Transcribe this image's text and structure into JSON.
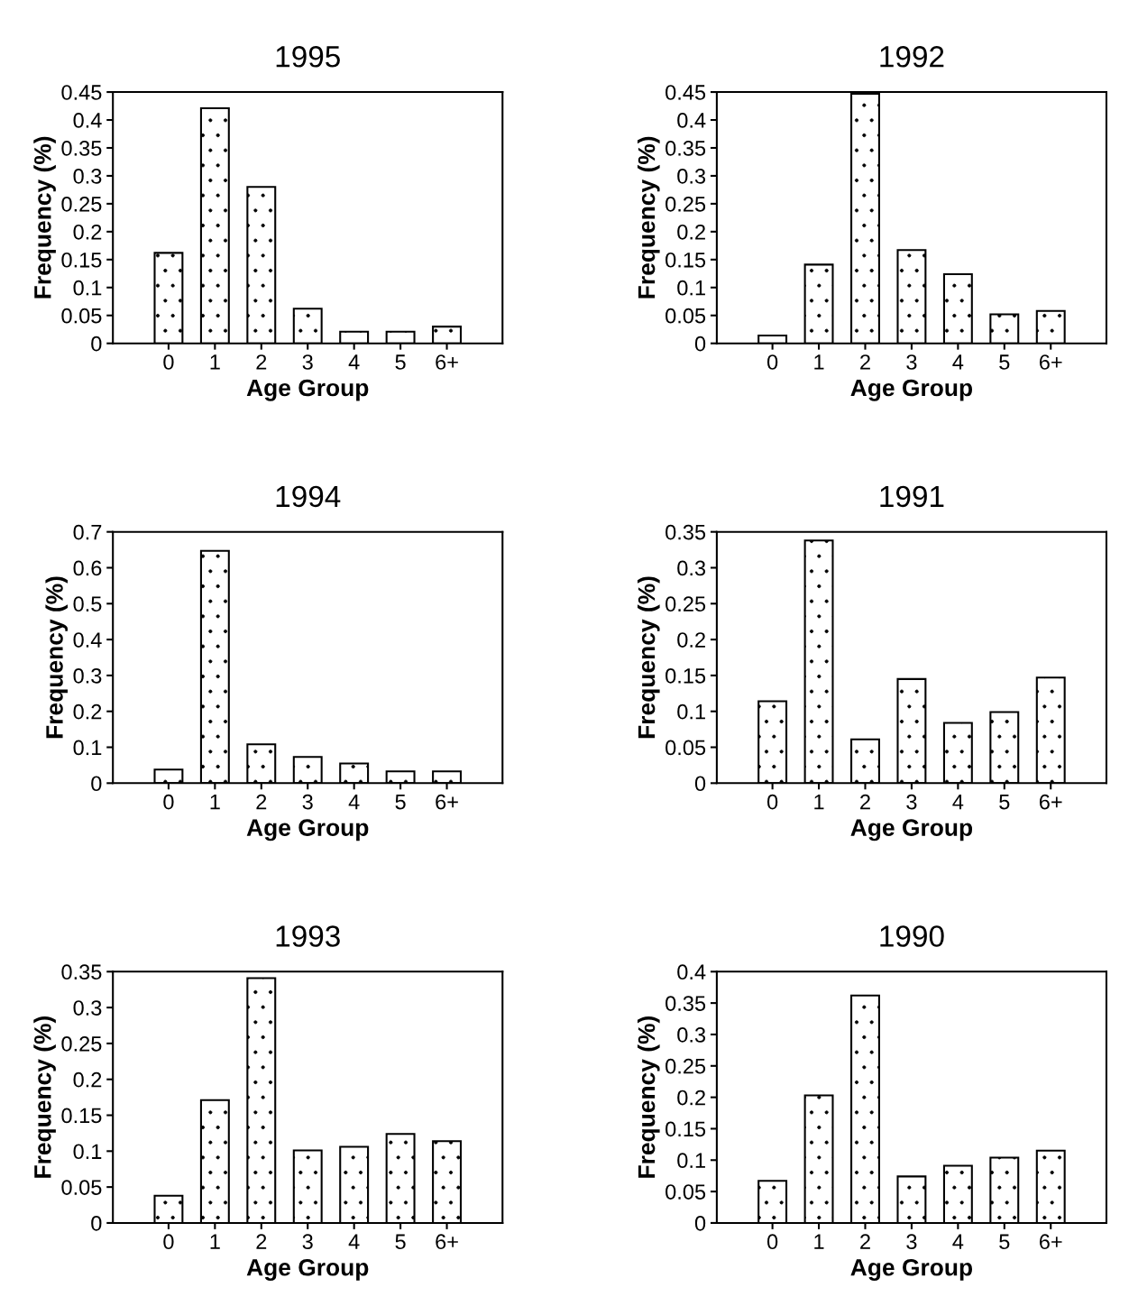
{
  "chart_data": [
    {
      "type": "bar",
      "title": "1995",
      "xlabel": "Age Group",
      "ylabel": "Frequency (%)",
      "categories": [
        "0",
        "1",
        "2",
        "3",
        "4",
        "5",
        "6+"
      ],
      "values": [
        0.162,
        0.421,
        0.28,
        0.062,
        0.021,
        0.021,
        0.03
      ],
      "ylim": [
        0,
        0.45
      ],
      "yticks": [
        0,
        0.05,
        0.1,
        0.15,
        0.2,
        0.25,
        0.3,
        0.35,
        0.4,
        0.45
      ],
      "grid": false
    },
    {
      "type": "bar",
      "title": "1992",
      "xlabel": "Age Group",
      "ylabel": "Frequency (%)",
      "categories": [
        "0",
        "1",
        "2",
        "3",
        "4",
        "5",
        "6+"
      ],
      "values": [
        0.014,
        0.141,
        0.447,
        0.167,
        0.124,
        0.052,
        0.058
      ],
      "ylim": [
        0,
        0.45
      ],
      "yticks": [
        0,
        0.05,
        0.1,
        0.15,
        0.2,
        0.25,
        0.3,
        0.35,
        0.4,
        0.45
      ],
      "grid": false
    },
    {
      "type": "bar",
      "title": "1994",
      "xlabel": "Age Group",
      "ylabel": "Frequency (%)",
      "categories": [
        "0",
        "1",
        "2",
        "3",
        "4",
        "5",
        "6+"
      ],
      "values": [
        0.038,
        0.647,
        0.108,
        0.073,
        0.055,
        0.033,
        0.033
      ],
      "ylim": [
        0,
        0.7
      ],
      "yticks": [
        0,
        0.1,
        0.2,
        0.3,
        0.4,
        0.5,
        0.6,
        0.7
      ],
      "grid": false
    },
    {
      "type": "bar",
      "title": "1991",
      "xlabel": "Age Group",
      "ylabel": "Frequency (%)",
      "categories": [
        "0",
        "1",
        "2",
        "3",
        "4",
        "5",
        "6+"
      ],
      "values": [
        0.114,
        0.338,
        0.061,
        0.145,
        0.084,
        0.099,
        0.147
      ],
      "ylim": [
        0,
        0.35
      ],
      "yticks": [
        0,
        0.05,
        0.1,
        0.15,
        0.2,
        0.25,
        0.3,
        0.35
      ],
      "grid": false
    },
    {
      "type": "bar",
      "title": "1993",
      "xlabel": "Age Group",
      "ylabel": "Frequency (%)",
      "categories": [
        "0",
        "1",
        "2",
        "3",
        "4",
        "5",
        "6+"
      ],
      "values": [
        0.038,
        0.171,
        0.341,
        0.101,
        0.106,
        0.124,
        0.114
      ],
      "ylim": [
        0,
        0.35
      ],
      "yticks": [
        0,
        0.05,
        0.1,
        0.15,
        0.2,
        0.25,
        0.3,
        0.35
      ],
      "grid": false
    },
    {
      "type": "bar",
      "title": "1990",
      "xlabel": "Age Group",
      "ylabel": "Frequency (%)",
      "categories": [
        "0",
        "1",
        "2",
        "3",
        "4",
        "5",
        "6+"
      ],
      "values": [
        0.067,
        0.203,
        0.362,
        0.074,
        0.091,
        0.104,
        0.115
      ],
      "ylim": [
        0,
        0.4
      ],
      "yticks": [
        0,
        0.05,
        0.1,
        0.15,
        0.2,
        0.25,
        0.3,
        0.35,
        0.4
      ],
      "grid": false
    }
  ]
}
